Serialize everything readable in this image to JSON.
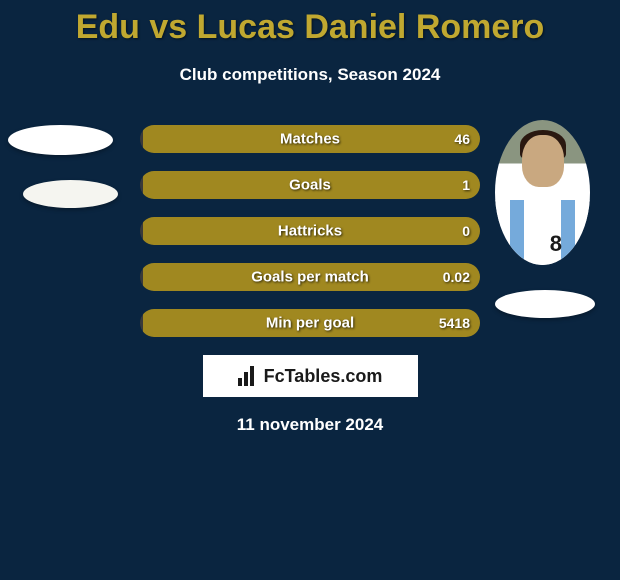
{
  "title": "Edu vs Lucas Daniel Romero",
  "subtitle": "Club competitions, Season 2024",
  "colors": {
    "background": "#0a2540",
    "title_color": "#c0a830",
    "bar_left_color": "#3a3a3a",
    "bar_right_color": "#a08820",
    "text_color": "#ffffff"
  },
  "stats": [
    {
      "label": "Matches",
      "left_pct": 1,
      "right_pct": 99,
      "right_value": "46"
    },
    {
      "label": "Goals",
      "left_pct": 1,
      "right_pct": 99,
      "right_value": "1"
    },
    {
      "label": "Hattricks",
      "left_pct": 1,
      "right_pct": 99,
      "right_value": "0"
    },
    {
      "label": "Goals per match",
      "left_pct": 1,
      "right_pct": 99,
      "right_value": "0.02"
    },
    {
      "label": "Min per goal",
      "left_pct": 1,
      "right_pct": 99,
      "right_value": "5418"
    }
  ],
  "player_right": {
    "jersey_number": "8",
    "stripe_color": "#75aadb"
  },
  "watermark": "FcTables.com",
  "date": "11 november 2024"
}
